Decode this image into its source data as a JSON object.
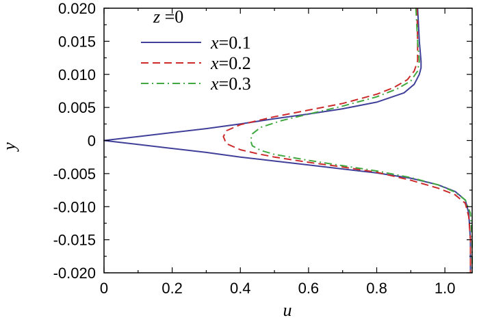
{
  "chart_data": {
    "type": "line",
    "title": "",
    "xlabel": "u",
    "ylabel": "y",
    "xlim": [
      0,
      1.08
    ],
    "ylim": [
      -0.02,
      0.02
    ],
    "xticks": [
      "0",
      "0.2",
      "0.4",
      "0.6",
      "0.8",
      "1.0"
    ],
    "yticks": [
      "0.020",
      "0.015",
      "0.010",
      "0.005",
      "0",
      "-0.005",
      "-0.010",
      "-0.015",
      "-0.020"
    ],
    "legend": {
      "title_var": "z",
      "title_rest": " =0",
      "placement": "top-left",
      "entries": [
        {
          "var": "x",
          "rest": "=0.1"
        },
        {
          "var": "x",
          "rest": "=0.2"
        },
        {
          "var": "x",
          "rest": "=0.3"
        }
      ]
    },
    "grid": false,
    "series": [
      {
        "color": "#3f3f9a",
        "dash": "solid",
        "points": [
          [
            0.92,
            0.02
          ],
          [
            0.925,
            0.015
          ],
          [
            0.93,
            0.012
          ],
          [
            0.93,
            0.011
          ],
          [
            0.925,
            0.01
          ],
          [
            0.91,
            0.0085
          ],
          [
            0.88,
            0.0072
          ],
          [
            0.8,
            0.0058
          ],
          [
            0.7,
            0.0048
          ],
          [
            0.6,
            0.004
          ],
          [
            0.5,
            0.0033
          ],
          [
            0.4,
            0.0025
          ],
          [
            0.3,
            0.0018
          ],
          [
            0.2,
            0.0012
          ],
          [
            0.1,
            0.0006
          ],
          [
            0.0,
            0.0
          ],
          [
            0.1,
            -0.0006
          ],
          [
            0.2,
            -0.0012
          ],
          [
            0.3,
            -0.0018
          ],
          [
            0.4,
            -0.0025
          ],
          [
            0.5,
            -0.0031
          ],
          [
            0.6,
            -0.0037
          ],
          [
            0.7,
            -0.0043
          ],
          [
            0.8,
            -0.0049
          ],
          [
            0.9,
            -0.0057
          ],
          [
            0.98,
            -0.0067
          ],
          [
            1.03,
            -0.0077
          ],
          [
            1.06,
            -0.009
          ],
          [
            1.07,
            -0.011
          ],
          [
            1.075,
            -0.015
          ],
          [
            1.075,
            -0.02
          ]
        ]
      },
      {
        "color": "#cc2a2a",
        "dash": "dashed",
        "points": [
          [
            0.918,
            0.02
          ],
          [
            0.92,
            0.015
          ],
          [
            0.92,
            0.012
          ],
          [
            0.91,
            0.0105
          ],
          [
            0.89,
            0.0092
          ],
          [
            0.85,
            0.008
          ],
          [
            0.8,
            0.007
          ],
          [
            0.7,
            0.0056
          ],
          [
            0.6,
            0.0046
          ],
          [
            0.5,
            0.0036
          ],
          [
            0.4,
            0.0024
          ],
          [
            0.36,
            0.0015
          ],
          [
            0.35,
            0.0006
          ],
          [
            0.355,
            0.0
          ],
          [
            0.36,
            -0.0005
          ],
          [
            0.4,
            -0.0014
          ],
          [
            0.45,
            -0.002
          ],
          [
            0.5,
            -0.0025
          ],
          [
            0.6,
            -0.0033
          ],
          [
            0.7,
            -0.004
          ],
          [
            0.8,
            -0.0048
          ],
          [
            0.9,
            -0.006
          ],
          [
            0.98,
            -0.0072
          ],
          [
            1.03,
            -0.0082
          ],
          [
            1.06,
            -0.0095
          ],
          [
            1.07,
            -0.0115
          ],
          [
            1.075,
            -0.015
          ],
          [
            1.075,
            -0.02
          ]
        ]
      },
      {
        "color": "#3fa83f",
        "dash": "dashdot",
        "points": [
          [
            0.915,
            0.02
          ],
          [
            0.92,
            0.015
          ],
          [
            0.925,
            0.012
          ],
          [
            0.92,
            0.0105
          ],
          [
            0.9,
            0.009
          ],
          [
            0.86,
            0.0078
          ],
          [
            0.8,
            0.0066
          ],
          [
            0.7,
            0.0052
          ],
          [
            0.6,
            0.004
          ],
          [
            0.52,
            0.003
          ],
          [
            0.46,
            0.002
          ],
          [
            0.435,
            0.001
          ],
          [
            0.43,
            0.0
          ],
          [
            0.435,
            -0.0008
          ],
          [
            0.46,
            -0.0015
          ],
          [
            0.5,
            -0.0021
          ],
          [
            0.6,
            -0.003
          ],
          [
            0.7,
            -0.0038
          ],
          [
            0.8,
            -0.0046
          ],
          [
            0.9,
            -0.0056
          ],
          [
            0.98,
            -0.0067
          ],
          [
            1.03,
            -0.0078
          ],
          [
            1.06,
            -0.009
          ],
          [
            1.075,
            -0.011
          ],
          [
            1.08,
            -0.015
          ],
          [
            1.08,
            -0.02
          ]
        ]
      }
    ]
  }
}
